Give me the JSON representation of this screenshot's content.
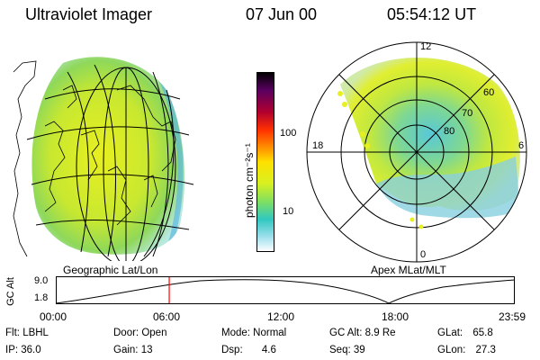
{
  "header": {
    "instrument": "Ultraviolet Imager",
    "date": "07 Jun 00",
    "time": "05:54:12 UT"
  },
  "left_panel": {
    "label": "Geographic Lat/Lon"
  },
  "right_panel": {
    "label": "Apex  MLat/MLT",
    "mlt_labels": [
      "12",
      "18",
      "6",
      "0"
    ],
    "mlat_labels": [
      "60",
      "70",
      "80"
    ]
  },
  "colorbar": {
    "unit": "photon cm⁻²s⁻¹",
    "tick_labels": [
      "100",
      "10"
    ]
  },
  "timeline": {
    "ylabel": "GC Alt",
    "y_ticks": [
      "9.0",
      "1.8"
    ],
    "x_ticks": [
      "00:00",
      "06:00",
      "12:00",
      "18:00",
      "23:59"
    ],
    "current_time": "05:54:12"
  },
  "info": {
    "flt_label": "Flt:",
    "flt_value": "LBHL",
    "ip_label": "IP:",
    "ip_value": "36.0",
    "door_label": "Door:",
    "door_value": "Open",
    "gain_label": "Gain:",
    "gain_value": "13",
    "mode_label": "Mode:",
    "mode_value": "Normal",
    "dsp_label": "Dsp:",
    "dsp_value": "4.6",
    "gcalt_label": "GC Alt:",
    "gcalt_value": "8.9 Re",
    "seq_label": "Seq:",
    "seq_value": "39",
    "glat_label": "GLat:",
    "glat_value": "65.8",
    "glon_label": "GLon:",
    "glon_value": "27.3"
  },
  "colors": {
    "cursor": "#ff0000",
    "line": "#000000"
  }
}
